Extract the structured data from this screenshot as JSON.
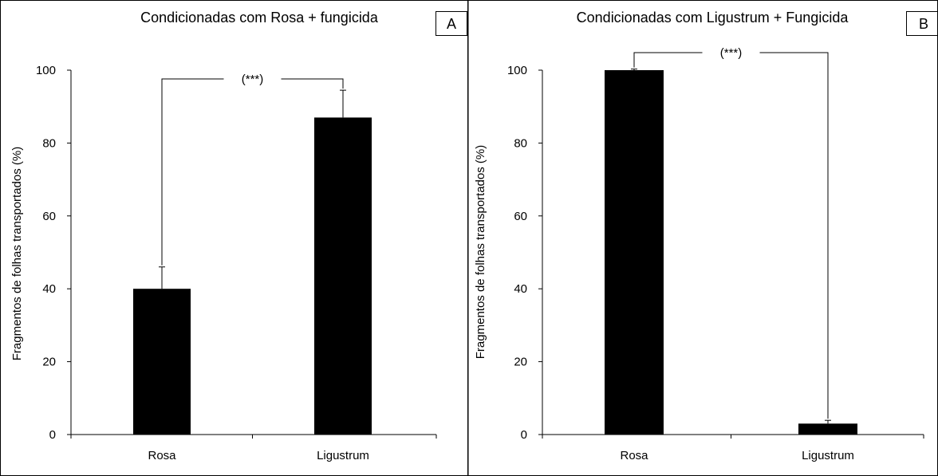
{
  "panels": [
    {
      "title": "Condicionadas com Rosa + fungicida",
      "badge": "A",
      "ylabel": "Fragmentos de folhas transportados (%)",
      "yticks": [
        "0",
        "20",
        "40",
        "60",
        "80",
        "100"
      ],
      "significance": "(***)"
    },
    {
      "title": "Condicionadas com Ligustrum + Fungicida",
      "badge": "B",
      "ylabel": "Fragmentos de folhas transportados (%)",
      "yticks": [
        "0",
        "20",
        "40",
        "60",
        "80",
        "100"
      ],
      "significance": "(***)"
    }
  ],
  "colors": {
    "bar": "#000000",
    "axis": "#000000",
    "border": "#000000"
  },
  "chart_data": [
    {
      "type": "bar",
      "title": "Condicionadas com Rosa + fungicida",
      "xlabel": "",
      "ylabel": "Fragmentos de folhas transportados (%)",
      "categories": [
        "Rosa",
        "Ligustrum"
      ],
      "values": [
        40,
        87
      ],
      "errors": [
        6,
        7.5
      ],
      "ylim": [
        0,
        100
      ],
      "grid": false,
      "annotations": [
        "(***)"
      ]
    },
    {
      "type": "bar",
      "title": "Condicionadas com Ligustrum + Fungicida",
      "xlabel": "",
      "ylabel": "Fragmentos de folhas transportados (%)",
      "categories": [
        "Rosa",
        "Ligustrum"
      ],
      "values": [
        100,
        3
      ],
      "errors": [
        0.3,
        0.9
      ],
      "ylim": [
        0,
        100
      ],
      "grid": false,
      "annotations": [
        "(***)"
      ]
    }
  ]
}
